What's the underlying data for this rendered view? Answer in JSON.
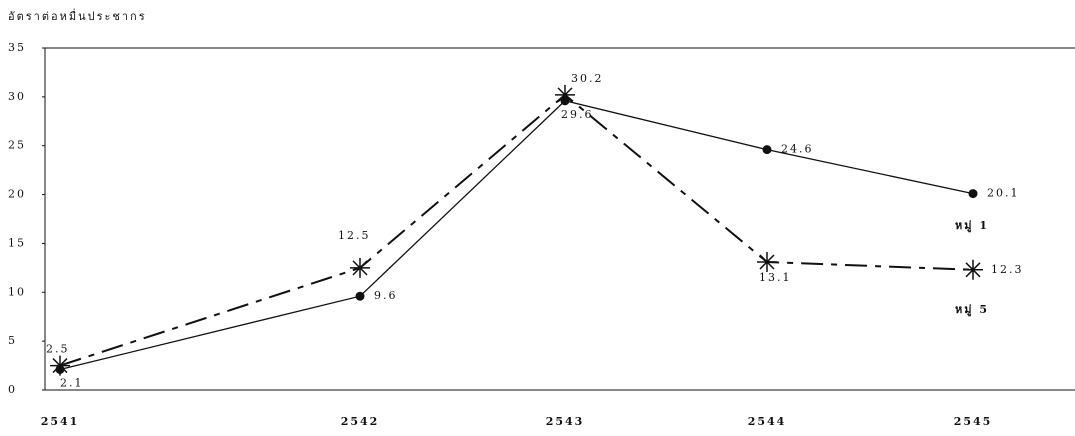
{
  "chart_data": {
    "type": "line",
    "y_label": "อัตราต่อหมื่นประชากร",
    "categories": [
      "2541",
      "2542",
      "2543",
      "2544",
      "2545"
    ],
    "series": [
      {
        "name": "หมู่ 1",
        "color": "#111111",
        "values": [
          2.1,
          9.6,
          29.6,
          24.6,
          20.1
        ]
      },
      {
        "name": "หมู่ 5",
        "color": "#111111",
        "values": [
          2.5,
          12.5,
          30.2,
          13.1,
          12.3
        ]
      }
    ],
    "ylim": [
      0,
      35
    ],
    "yticks": [
      0,
      5,
      10,
      15,
      20,
      25,
      30,
      35
    ]
  }
}
